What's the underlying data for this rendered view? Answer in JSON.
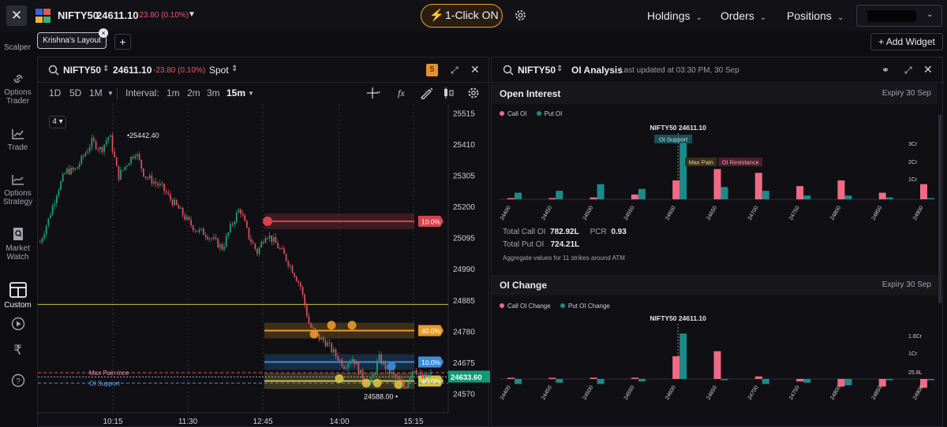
{
  "topbar": {
    "close_glyph": "✕",
    "ticker_name": "NIFTY50",
    "ticker_price": "24611.10",
    "ticker_change": "-23.80 (0.10%)",
    "one_click": "1-Click ON",
    "nav": [
      "Holdings",
      "Orders",
      "Positions"
    ]
  },
  "subbar": {
    "scalper": "Scalper",
    "layout_name": "Krishna's  Layout",
    "add_widget": "+ Add Widget"
  },
  "rail": [
    {
      "label": "Options\nTrader",
      "icon": "link-icon"
    },
    {
      "label": "Trade",
      "icon": "chart-icon"
    },
    {
      "label": "Options\nStrategy",
      "icon": "strategy-icon"
    },
    {
      "label": "Market\nWatch",
      "icon": "watch-icon"
    },
    {
      "label": "Custom",
      "icon": "layout-icon",
      "active": true
    },
    {
      "label": "",
      "icon": "play-icon"
    },
    {
      "label": "",
      "icon": "rupee-icon"
    },
    {
      "label": "",
      "icon": "help-icon"
    }
  ],
  "chart_panel": {
    "symbol": "NIFTY50",
    "price": "24611.10",
    "change": "-23.80 (0.10%)",
    "mode": "Spot",
    "badge": "5",
    "ranges": [
      "1D",
      "5D",
      "1M"
    ],
    "interval_label": "Interval:",
    "intervals": [
      "1m",
      "2m",
      "3m",
      "15m"
    ],
    "selected_interval": "15m",
    "count_badge": "4",
    "high_label": "25442.40",
    "low_label": "24588.00",
    "max_pain_label": "Max Pain",
    "max_pain_suffix": "ince",
    "oi_support_label": "OI Support",
    "current_price_tag": "24633.60",
    "zone_tags": {
      "red": "10.0%",
      "orange": "40.0%",
      "blue": "10.0%",
      "yellow": "40.0%"
    },
    "colors": {
      "red": "#d8434c",
      "orange": "#e89a2b",
      "blue": "#3b8de0",
      "yellow": "#d8c045",
      "green_tag": "#139a73",
      "candle_up": "#1fa37a",
      "candle_down": "#e0505f"
    }
  },
  "chart_data": [
    {
      "type": "candlestick",
      "title": "NIFTY50 Spot 15m",
      "y_ticks": [
        25515,
        25410,
        25305,
        25200,
        25095,
        24990,
        24885,
        24780,
        24675,
        24570
      ],
      "x_ticks": [
        "10:15",
        "11:30",
        "12:45",
        "14:00",
        "15:15"
      ],
      "ylim": [
        24505,
        25545
      ],
      "close_path": [
        25080,
        25160,
        25255,
        25320,
        25320,
        25370,
        25420,
        25390,
        25442,
        25300,
        25345,
        25385,
        25305,
        25285,
        25265,
        25225,
        25190,
        25150,
        25120,
        25110,
        25085,
        25060,
        25135,
        25195,
        25100,
        25045,
        25110,
        25080,
        25040,
        24990,
        24930,
        24800,
        24760,
        24740,
        24700,
        24665,
        24690,
        24630,
        24600,
        24690,
        24650,
        24620,
        24588,
        24660,
        24620,
        24634
      ],
      "levels": {
        "yellow_line": 24870,
        "max_pain": 24640,
        "oi_support": 24605,
        "current": 24633.6
      }
    },
    {
      "type": "bar",
      "title": "Open Interest",
      "categories": [
        "24400",
        "24450",
        "24500",
        "24550",
        "24600",
        "24650",
        "24700",
        "24750",
        "24800",
        "24850",
        "24900"
      ],
      "y_ticks": [
        "3Cr",
        "2Cr",
        "1Cr"
      ],
      "series": [
        {
          "name": "Call OI",
          "color": "#f06a86",
          "values": [
            0.05,
            0.05,
            0.1,
            0.25,
            1.0,
            1.6,
            1.4,
            0.7,
            1.0,
            0.35,
            0.8
          ]
        },
        {
          "name": "Put OI",
          "color": "#1d8a8a",
          "values": [
            0.35,
            0.45,
            0.8,
            0.55,
            3.0,
            0.65,
            0.45,
            0.2,
            0.2,
            0.1,
            0.05
          ]
        }
      ],
      "spot_label": "NIFTY50 24611.10",
      "annotations": [
        "OI Support",
        "Max Pain",
        "OI Resistance"
      ]
    },
    {
      "type": "bar",
      "title": "OI Change",
      "categories": [
        "24400",
        "24450",
        "24500",
        "24550",
        "24600",
        "24650",
        "24700",
        "24750",
        "24800",
        "24850",
        "24900"
      ],
      "y_ticks": [
        "1.8Cr",
        "1Cr",
        "25.8L"
      ],
      "series": [
        {
          "name": "Call OI Change",
          "color": "#f06a86",
          "values": [
            0.0,
            0.0,
            0.05,
            0.05,
            0.9,
            1.1,
            0.1,
            -0.1,
            -0.3,
            -0.3,
            -0.35
          ]
        },
        {
          "name": "Put OI Change",
          "color": "#1d8a8a",
          "values": [
            -0.2,
            -0.15,
            -0.2,
            -0.1,
            1.8,
            -0.05,
            -0.2,
            -0.15,
            -0.25,
            -0.05,
            -0.05
          ]
        }
      ],
      "spot_label": "NIFTY50 24611.10"
    }
  ],
  "oi_panel": {
    "symbol": "NIFTY50",
    "title": "OI Analysis",
    "updated": "Last updated at 03:30 PM, 30 Sep",
    "oi_section": {
      "title": "Open Interest",
      "expiry": "Expiry 30 Sep",
      "legend": [
        "Call OI",
        "Put OI"
      ],
      "total_call_label": "Total Call OI",
      "total_call": "782.92L",
      "pcr_label": "PCR",
      "pcr": "0.93",
      "total_put_label": "Total Put OI",
      "total_put": "724.21L",
      "aggregate_note": "Aggregate values for 11 strikes around ATM"
    },
    "change_section": {
      "title": "OI Change",
      "expiry": "Expiry 30 Sep",
      "legend": [
        "Call OI Change",
        "Put OI Change"
      ]
    }
  }
}
